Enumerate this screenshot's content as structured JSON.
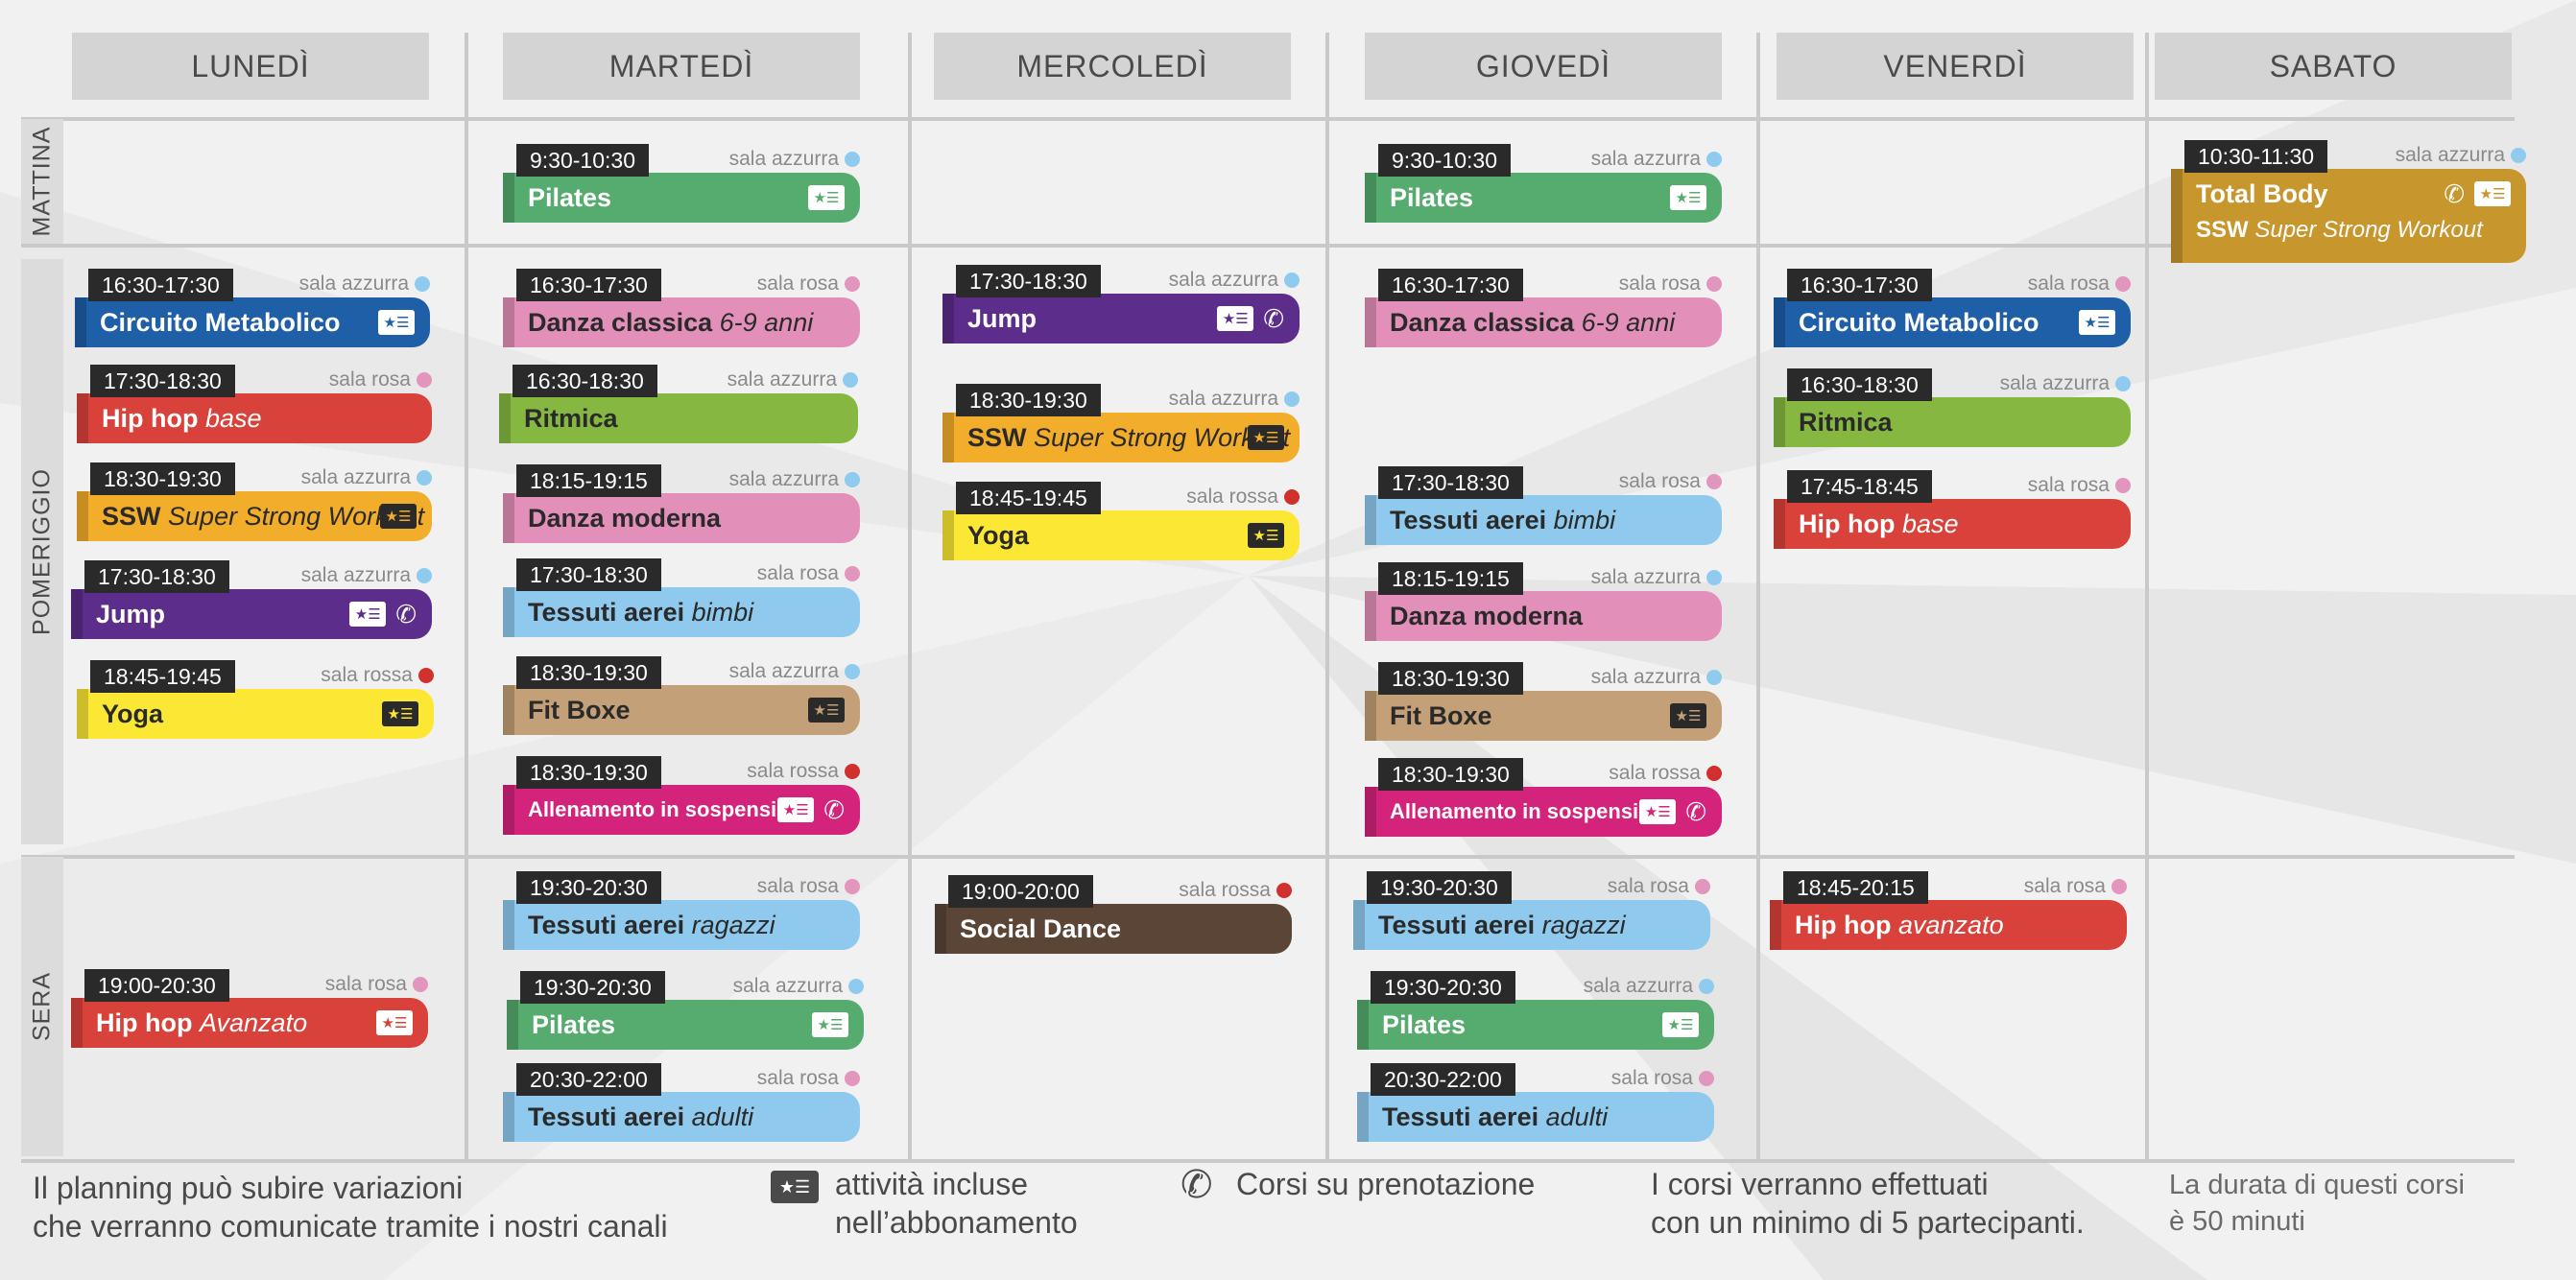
{
  "colors": {
    "background": "#f1f1f1",
    "header": "#d4d4d4",
    "time_badge": "#2a2a2a",
    "dot_azzurra": "#8fcbee",
    "dot_rosa": "#e295bd",
    "dot_rossa": "#d0312d"
  },
  "days": [
    "LUNEDÌ",
    "MARTEDÌ",
    "MERCOLEDÌ",
    "GIOVEDÌ",
    "VENERDÌ",
    "SABATO"
  ],
  "periods": [
    "MATTINA",
    "POMERIGGIO",
    "SERA"
  ],
  "events": [
    {
      "id": "lun-1",
      "time": "16:30-17:30",
      "room": "sala azzurra",
      "title": "Circuito Metabolico",
      "subtitle": "",
      "color": "#1f5fa8",
      "text": "#ffffff",
      "dot": "#8fcbee",
      "icons": [
        "card-icon"
      ]
    },
    {
      "id": "lun-2",
      "time": "17:30-18:30",
      "room": "sala rosa",
      "title": "Hip hop",
      "subtitle": "base",
      "color": "#d9423a",
      "text": "#ffffff",
      "dot": "#e295bd",
      "icons": []
    },
    {
      "id": "lun-3",
      "time": "18:30-19:30",
      "room": "sala azzurra",
      "title": "SSW",
      "subtitle": "Super Strong Workout",
      "color": "#f2ad2b",
      "text": "#2a2a2a",
      "dot": "#8fcbee",
      "icons": [
        "card-icon"
      ]
    },
    {
      "id": "lun-4",
      "time": "17:30-18:30",
      "room": "sala azzurra",
      "title": "Jump",
      "subtitle": "",
      "color": "#5c2d8a",
      "text": "#ffffff",
      "dot": "#8fcbee",
      "icons": [
        "card-icon",
        "phone-icon"
      ]
    },
    {
      "id": "lun-5",
      "time": "18:45-19:45",
      "room": "sala rossa",
      "title": "Yoga",
      "subtitle": "",
      "color": "#fbe734",
      "text": "#2a2a2a",
      "dot": "#d0312d",
      "icons": [
        "card-icon"
      ]
    },
    {
      "id": "lun-6",
      "time": "19:00-20:30",
      "room": "sala rosa",
      "title": "Hip hop",
      "subtitle": "Avanzato",
      "color": "#d9423a",
      "text": "#ffffff",
      "dot": "#e295bd",
      "icons": [
        "card-icon"
      ]
    },
    {
      "id": "mar-1",
      "time": "9:30-10:30",
      "room": "sala azzurra",
      "title": "Pilates",
      "subtitle": "",
      "color": "#56ab6e",
      "text": "#ffffff",
      "dot": "#8fcbee",
      "icons": [
        "card-icon"
      ]
    },
    {
      "id": "mar-2",
      "time": "16:30-17:30",
      "room": "sala rosa",
      "title": "Danza classica",
      "subtitle": "6-9 anni",
      "color": "#e290b9",
      "text": "#2a2a2a",
      "dot": "#e295bd",
      "icons": []
    },
    {
      "id": "mar-3",
      "time": "16:30-18:30",
      "room": "sala azzurra",
      "title": "Ritmica",
      "subtitle": "",
      "color": "#86b841",
      "text": "#2a2a2a",
      "dot": "#8fcbee",
      "icons": []
    },
    {
      "id": "mar-4",
      "time": "18:15-19:15",
      "room": "sala azzurra",
      "title": "Danza moderna",
      "subtitle": "",
      "color": "#e290b9",
      "text": "#2a2a2a",
      "dot": "#8fcbee",
      "icons": []
    },
    {
      "id": "mar-5",
      "time": "17:30-18:30",
      "room": "sala rosa",
      "title": "Tessuti aerei",
      "subtitle": "bimbi",
      "color": "#8fcaee",
      "text": "#2a2a2a",
      "dot": "#e295bd",
      "icons": []
    },
    {
      "id": "mar-6",
      "time": "18:30-19:30",
      "room": "sala azzurra",
      "title": "Fit Boxe",
      "subtitle": "",
      "color": "#c3a077",
      "text": "#2a2a2a",
      "dot": "#8fcbee",
      "icons": [
        "card-icon"
      ]
    },
    {
      "id": "mar-7",
      "time": "18:30-19:30",
      "room": "sala rossa",
      "title": "Allenamento in sospensione",
      "subtitle": "",
      "color": "#d4237b",
      "text": "#ffffff",
      "dot": "#d0312d",
      "icons": [
        "card-icon",
        "phone-icon"
      ]
    },
    {
      "id": "mar-8",
      "time": "19:30-20:30",
      "room": "sala rosa",
      "title": "Tessuti aerei",
      "subtitle": "ragazzi",
      "color": "#8fcaee",
      "text": "#2a2a2a",
      "dot": "#e295bd",
      "icons": []
    },
    {
      "id": "mar-9",
      "time": "19:30-20:30",
      "room": "sala azzurra",
      "title": "Pilates",
      "subtitle": "",
      "color": "#56ab6e",
      "text": "#ffffff",
      "dot": "#8fcbee",
      "icons": [
        "card-icon"
      ]
    },
    {
      "id": "mar-10",
      "time": "20:30-22:00",
      "room": "sala rosa",
      "title": "Tessuti aerei",
      "subtitle": "adulti",
      "color": "#8fcaee",
      "text": "#2a2a2a",
      "dot": "#e295bd",
      "icons": []
    },
    {
      "id": "mer-1",
      "time": "17:30-18:30",
      "room": "sala azzurra",
      "title": "Jump",
      "subtitle": "",
      "color": "#5c2d8a",
      "text": "#ffffff",
      "dot": "#8fcbee",
      "icons": [
        "card-icon",
        "phone-icon"
      ]
    },
    {
      "id": "mer-2",
      "time": "18:30-19:30",
      "room": "sala azzurra",
      "title": "SSW",
      "subtitle": "Super Strong Workout",
      "color": "#f2ad2b",
      "text": "#2a2a2a",
      "dot": "#8fcbee",
      "icons": [
        "card-icon"
      ]
    },
    {
      "id": "mer-3",
      "time": "18:45-19:45",
      "room": "sala rossa",
      "title": "Yoga",
      "subtitle": "",
      "color": "#fbe734",
      "text": "#2a2a2a",
      "dot": "#d0312d",
      "icons": [
        "card-icon"
      ]
    },
    {
      "id": "mer-4",
      "time": "19:00-20:00",
      "room": "sala rossa",
      "title": "Social Dance",
      "subtitle": "",
      "color": "#5a4537",
      "text": "#ffffff",
      "dot": "#d0312d",
      "icons": []
    },
    {
      "id": "gio-1",
      "time": "9:30-10:30",
      "room": "sala azzurra",
      "title": "Pilates",
      "subtitle": "",
      "color": "#56ab6e",
      "text": "#ffffff",
      "dot": "#8fcbee",
      "icons": [
        "card-icon"
      ]
    },
    {
      "id": "gio-2",
      "time": "16:30-17:30",
      "room": "sala rosa",
      "title": "Danza classica",
      "subtitle": "6-9 anni",
      "color": "#e290b9",
      "text": "#2a2a2a",
      "dot": "#e295bd",
      "icons": []
    },
    {
      "id": "gio-3",
      "time": "17:30-18:30",
      "room": "sala rosa",
      "title": "Tessuti aerei",
      "subtitle": "bimbi",
      "color": "#8fcaee",
      "text": "#2a2a2a",
      "dot": "#e295bd",
      "icons": []
    },
    {
      "id": "gio-4",
      "time": "18:15-19:15",
      "room": "sala azzurra",
      "title": "Danza moderna",
      "subtitle": "",
      "color": "#e290b9",
      "text": "#2a2a2a",
      "dot": "#8fcbee",
      "icons": []
    },
    {
      "id": "gio-5",
      "time": "18:30-19:30",
      "room": "sala azzurra",
      "title": "Fit Boxe",
      "subtitle": "",
      "color": "#c3a077",
      "text": "#2a2a2a",
      "dot": "#8fcbee",
      "icons": [
        "card-icon"
      ]
    },
    {
      "id": "gio-6",
      "time": "18:30-19:30",
      "room": "sala rossa",
      "title": "Allenamento in sospensione",
      "subtitle": "",
      "color": "#d4237b",
      "text": "#ffffff",
      "dot": "#d0312d",
      "icons": [
        "card-icon",
        "phone-icon"
      ]
    },
    {
      "id": "gio-7",
      "time": "19:30-20:30",
      "room": "sala rosa",
      "title": "Tessuti aerei",
      "subtitle": "ragazzi",
      "color": "#8fcaee",
      "text": "#2a2a2a",
      "dot": "#e295bd",
      "icons": []
    },
    {
      "id": "gio-8",
      "time": "19:30-20:30",
      "room": "sala azzurra",
      "title": "Pilates",
      "subtitle": "",
      "color": "#56ab6e",
      "text": "#ffffff",
      "dot": "#8fcbee",
      "icons": [
        "card-icon"
      ]
    },
    {
      "id": "gio-9",
      "time": "20:30-22:00",
      "room": "sala rosa",
      "title": "Tessuti aerei",
      "subtitle": "adulti",
      "color": "#8fcaee",
      "text": "#2a2a2a",
      "dot": "#e295bd",
      "icons": []
    },
    {
      "id": "ven-1",
      "time": "16:30-17:30",
      "room": "sala rosa",
      "title": "Circuito Metabolico",
      "subtitle": "",
      "color": "#1f5fa8",
      "text": "#ffffff",
      "dot": "#e295bd",
      "icons": [
        "card-icon"
      ]
    },
    {
      "id": "ven-2",
      "time": "16:30-18:30",
      "room": "sala azzurra",
      "title": "Ritmica",
      "subtitle": "",
      "color": "#86b841",
      "text": "#2a2a2a",
      "dot": "#8fcbee",
      "icons": []
    },
    {
      "id": "ven-3",
      "time": "17:45-18:45",
      "room": "sala rosa",
      "title": "Hip hop",
      "subtitle": "base",
      "color": "#d9423a",
      "text": "#ffffff",
      "dot": "#e295bd",
      "icons": []
    },
    {
      "id": "ven-4",
      "time": "18:45-20:15",
      "room": "sala rosa",
      "title": "Hip hop",
      "subtitle": "avanzato",
      "color": "#d9423a",
      "text": "#ffffff",
      "dot": "#e295bd",
      "icons": []
    },
    {
      "id": "sab-1",
      "time": "10:30-11:30",
      "room": "sala azzurra",
      "title": "Total Body",
      "subtitle": "",
      "color": "#c7962c",
      "text": "#ffffff",
      "dot": "#8fcbee",
      "icons": [
        "phone-icon",
        "card-icon"
      ],
      "line2_title": "SSW",
      "line2_subtitle": "Super Strong Workout"
    }
  ],
  "footer": {
    "note_line1": "Il planning può subire variazioni",
    "note_line2": "che verranno comunicate tramite i nostri canali",
    "legend_card_line1": "attività incluse",
    "legend_card_line2": "nell’abbonamento",
    "legend_phone": "Corsi su prenotazione",
    "minimum_line1": "I corsi verranno effettuati",
    "minimum_line2": "con un minimo di 5 partecipanti.",
    "duration_line1": "La durata di questi corsi",
    "duration_line2": "è 50 minuti"
  }
}
